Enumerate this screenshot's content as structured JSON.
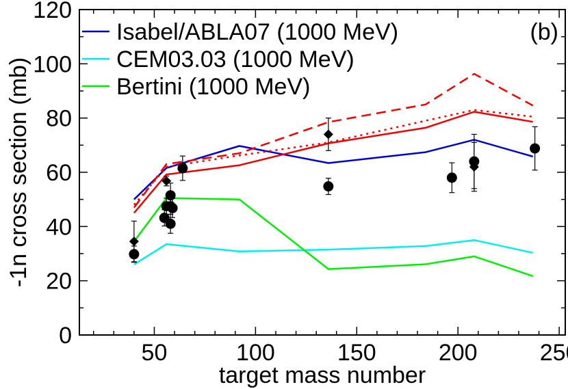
{
  "chart_data": {
    "type": "line",
    "title": "",
    "panel_label": "(b)",
    "xlabel": "target mass number",
    "ylabel": "-1n cross section (mb)",
    "xlim": [
      13,
      253
    ],
    "ylim": [
      0,
      120
    ],
    "xticks": [
      50,
      100,
      150,
      200,
      250
    ],
    "yticks": [
      0,
      20,
      40,
      60,
      80,
      100,
      120
    ],
    "xtick_labels": [
      "50",
      "100",
      "150",
      "200",
      "250"
    ],
    "ytick_labels": [
      "0",
      "20",
      "40",
      "60",
      "80",
      "100",
      "120"
    ],
    "legend_position": "top-left",
    "legend_labels": [
      "Isabel/ABLA07 (1000 MeV)",
      "CEM03.03 (1000 MeV)",
      "Bertini (1000 MeV)"
    ],
    "series": [
      {
        "name": "Isabel/ABLA07 (1000 MeV)",
        "color": "#0000cc",
        "style": "solid",
        "in_legend": true,
        "x": [
          40,
          56,
          92,
          136,
          184,
          208,
          237
        ],
        "y": [
          50,
          61.6,
          69.7,
          63.4,
          67.4,
          72,
          65.8
        ]
      },
      {
        "name": "CEM03.03 (1000 MeV)",
        "color": "#00eeee",
        "style": "solid",
        "in_legend": true,
        "x": [
          40,
          56,
          92,
          136,
          184,
          208,
          237
        ],
        "y": [
          26,
          33.5,
          30.8,
          31.5,
          32.8,
          35,
          30.3
        ]
      },
      {
        "name": "Bertini (1000 MeV)",
        "color": "#00ee00",
        "style": "solid",
        "in_legend": true,
        "x": [
          40,
          56,
          92,
          136,
          184,
          208,
          237
        ],
        "y": [
          34.5,
          50.5,
          50,
          24.3,
          26.1,
          29,
          21.7
        ]
      },
      {
        "name": "red solid",
        "color": "#ee0000",
        "style": "solid",
        "in_legend": false,
        "x": [
          40,
          56,
          92,
          136,
          184,
          208,
          237
        ],
        "y": [
          45,
          59.2,
          62.6,
          70.7,
          76.4,
          82.3,
          78.6
        ]
      },
      {
        "name": "red dashed",
        "color": "#ee0000",
        "style": "dashed",
        "in_legend": false,
        "x": [
          40,
          56,
          92,
          136,
          184,
          208,
          237
        ],
        "y": [
          47,
          63,
          67,
          78.5,
          85,
          96.3,
          84.6
        ]
      },
      {
        "name": "red dotted",
        "color": "#ee0000",
        "style": "dotted",
        "in_legend": false,
        "x": [
          40,
          56,
          92,
          136,
          184,
          208,
          237
        ],
        "y": [
          48,
          62,
          66.2,
          71,
          79,
          83,
          80.5
        ]
      }
    ],
    "points": [
      {
        "name": "circles (data)",
        "marker": "circle",
        "color": "#000000",
        "x": [
          40,
          55,
          56,
          58,
          58,
          58,
          59,
          64,
          136,
          197,
          208,
          238
        ],
        "y": [
          29.8,
          43.2,
          47.5,
          41,
          47.5,
          51.5,
          46.8,
          61.5,
          54.8,
          58,
          64,
          68.8
        ],
        "err": [
          3,
          3,
          3,
          3.5,
          3,
          4.5,
          3.5,
          4.5,
          3,
          5.5,
          10,
          8
        ]
      },
      {
        "name": "diamonds (data)",
        "marker": "diamond",
        "color": "#000000",
        "x": [
          40,
          56,
          136,
          208
        ],
        "y": [
          34.5,
          56.8,
          74,
          62
        ],
        "err": [
          7.5,
          1.8,
          6,
          9
        ]
      }
    ]
  }
}
